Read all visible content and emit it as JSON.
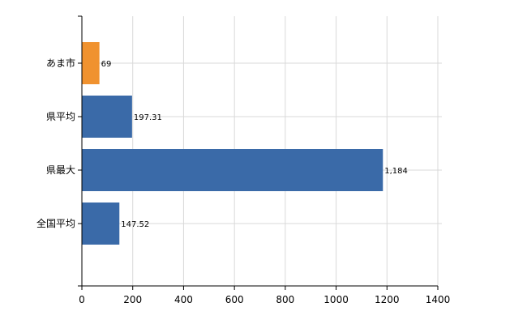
{
  "chart_data": {
    "type": "bar",
    "orientation": "horizontal",
    "categories": [
      "あま市",
      "県平均",
      "県最大",
      "全国平均"
    ],
    "values": [
      69,
      197.31,
      1184,
      147.52
    ],
    "data_labels": [
      "69",
      "197.31",
      "1,184",
      "147.52"
    ],
    "colors": [
      "#f0922f",
      "#3a6aa8",
      "#3a6aa8",
      "#3a6aa8"
    ],
    "xlim": [
      0,
      1400
    ],
    "x_ticks": [
      0,
      200,
      400,
      600,
      800,
      1000,
      1200,
      1400
    ],
    "title": "",
    "xlabel": "",
    "ylabel": "",
    "grid": true,
    "legend": "none"
  }
}
